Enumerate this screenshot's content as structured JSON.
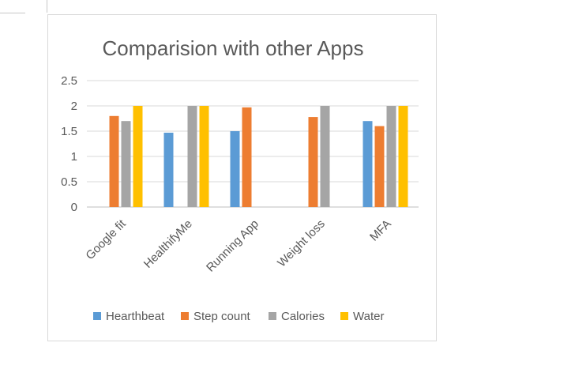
{
  "chart_data": {
    "type": "bar",
    "title": "Comparision with other Apps",
    "xlabel": "",
    "ylabel": "",
    "ylim": [
      0,
      2.5
    ],
    "yticks": [
      "0",
      "0.5",
      "1",
      "1.5",
      "2",
      "2.5"
    ],
    "categories": [
      "Google fit",
      "HealthifyMe",
      "Running App",
      "Weight loss",
      "MFA"
    ],
    "series": [
      {
        "name": "Hearthbeat",
        "color": "#5b9bd5",
        "values": [
          null,
          1.47,
          1.5,
          null,
          1.7
        ]
      },
      {
        "name": "Step count",
        "color": "#ed7d31",
        "values": [
          1.8,
          null,
          1.97,
          1.78,
          1.6
        ]
      },
      {
        "name": "Calories",
        "color": "#a5a5a5",
        "values": [
          1.7,
          2.0,
          null,
          2.0,
          2.0
        ]
      },
      {
        "name": "Water",
        "color": "#ffc000",
        "values": [
          2.0,
          2.0,
          null,
          null,
          2.0
        ]
      }
    ],
    "grid": true,
    "legend_position": "bottom"
  }
}
